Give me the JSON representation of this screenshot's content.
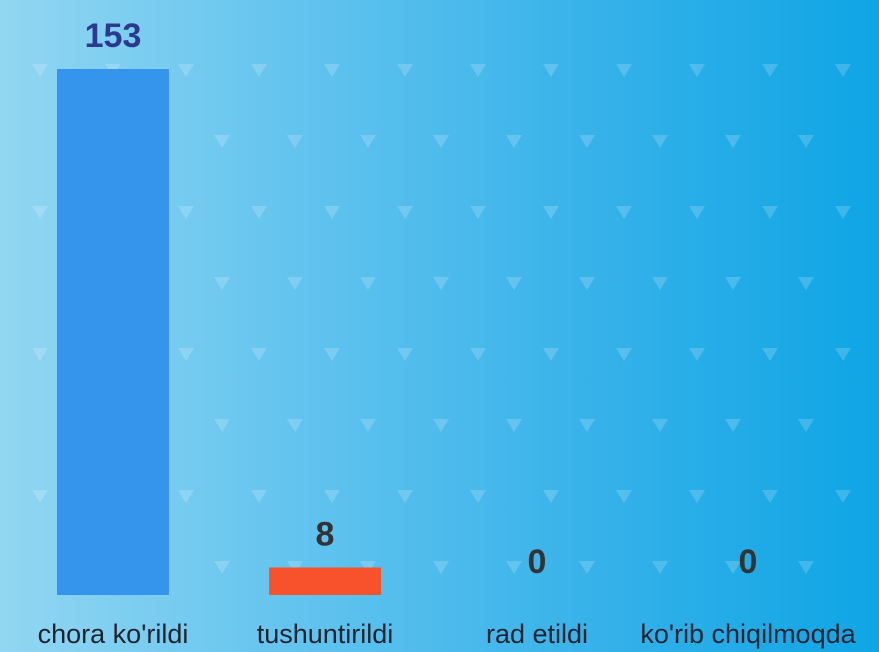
{
  "chart_data": {
    "type": "bar",
    "categories": [
      "chora ko'rildi",
      "tushuntirildi",
      "rad etildi",
      "ko'rib chiqilmoqda"
    ],
    "values": [
      153,
      8,
      0,
      0
    ],
    "colors": [
      "#3595ec",
      "#f8522c",
      "#3595ec",
      "#3595ec"
    ],
    "label_colors": [
      "#2b3a8c",
      "#333333",
      "#333333",
      "#333333"
    ],
    "ylim": [
      0,
      153
    ],
    "grid": false,
    "legend": "none"
  }
}
